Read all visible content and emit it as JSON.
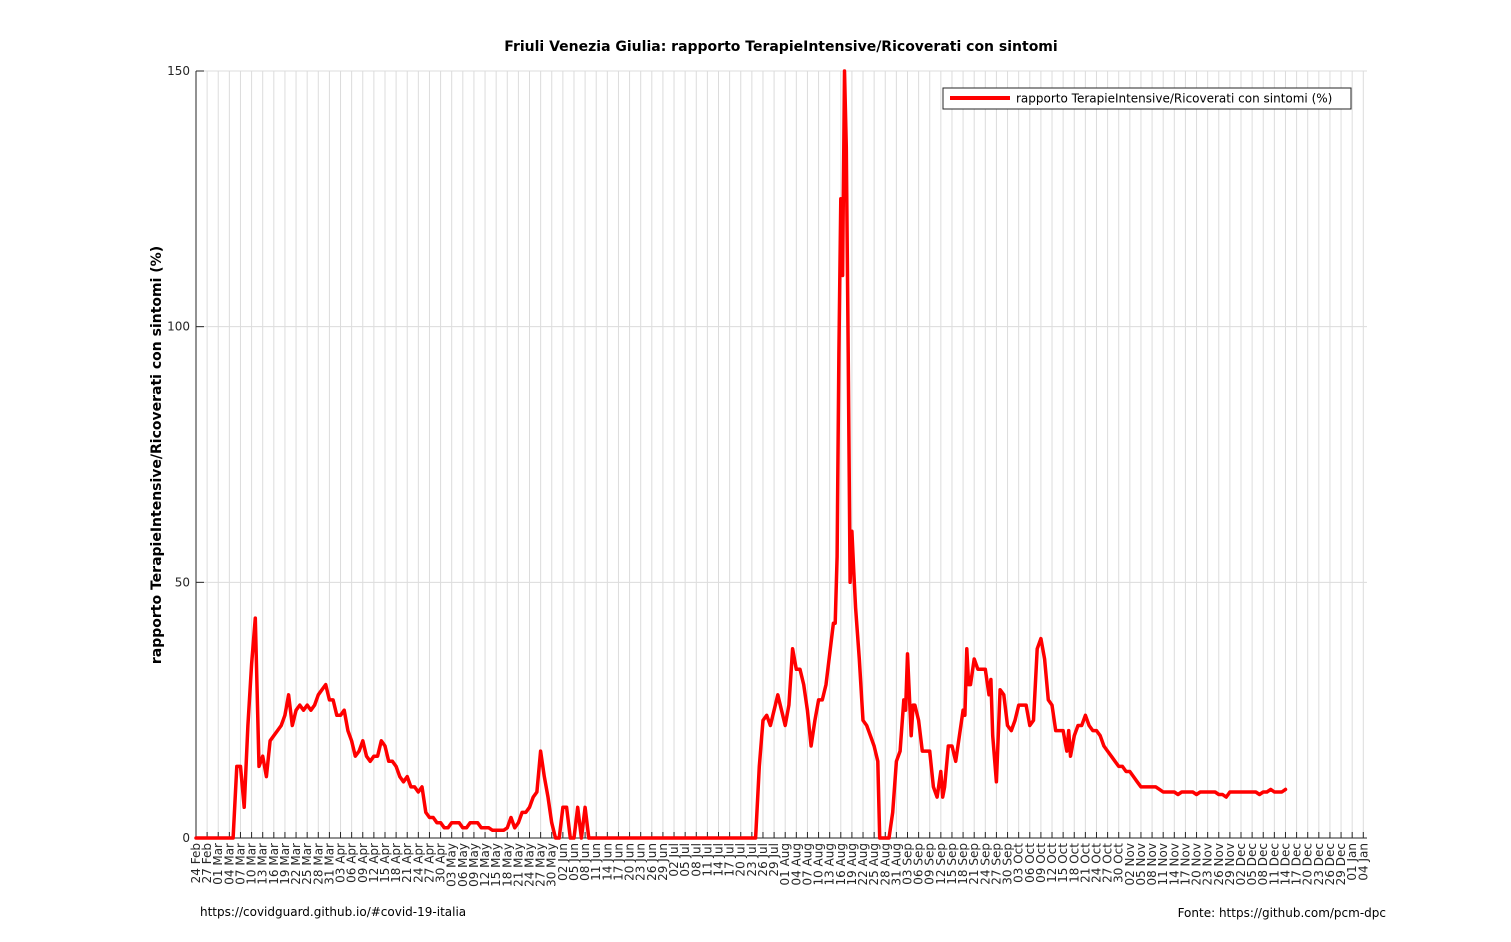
{
  "chart_data": {
    "type": "line",
    "title": "Friuli Venezia Giulia: rapporto TerapieIntensive/Ricoverati con sintomi",
    "ylabel": "rapporto TerapieIntensive/Ricoverati con sintomi (%)",
    "xlabel": "",
    "ylim": [
      0,
      150
    ],
    "yticks": [
      0,
      50,
      100,
      150
    ],
    "grid": true,
    "legend_position": "top-right",
    "x_tick_labels": [
      "24 Feb",
      "27 Feb",
      "01 Mar",
      "04 Mar",
      "07 Mar",
      "10 Mar",
      "13 Mar",
      "16 Mar",
      "19 Mar",
      "22 Mar",
      "25 Mar",
      "28 Mar",
      "31 Mar",
      "03 Apr",
      "06 Apr",
      "09 Apr",
      "12 Apr",
      "15 Apr",
      "18 Apr",
      "21 Apr",
      "24 Apr",
      "27 Apr",
      "30 Apr",
      "03 May",
      "06 May",
      "09 May",
      "12 May",
      "15 May",
      "18 May",
      "21 May",
      "24 May",
      "27 May",
      "30 May",
      "02 Jun",
      "05 Jun",
      "08 Jun",
      "11 Jun",
      "14 Jun",
      "17 Jun",
      "20 Jun",
      "23 Jun",
      "26 Jun",
      "29 Jun",
      "02 Jul",
      "05 Jul",
      "08 Jul",
      "11 Jul",
      "14 Jul",
      "17 Jul",
      "20 Jul",
      "23 Jul",
      "26 Jul",
      "29 Jul",
      "01 Aug",
      "04 Aug",
      "07 Aug",
      "10 Aug",
      "13 Aug",
      "16 Aug",
      "19 Aug",
      "22 Aug",
      "25 Aug",
      "28 Aug",
      "31 Aug",
      "03 Sep",
      "06 Sep",
      "09 Sep",
      "12 Sep",
      "15 Sep",
      "18 Sep",
      "21 Sep",
      "24 Sep",
      "27 Sep",
      "30 Sep",
      "03 Oct",
      "06 Oct",
      "09 Oct",
      "12 Oct",
      "15 Oct",
      "18 Oct",
      "21 Oct",
      "24 Oct",
      "27 Oct",
      "30 Oct",
      "02 Nov",
      "05 Nov",
      "08 Nov",
      "11 Nov",
      "14 Nov",
      "17 Nov",
      "20 Nov",
      "23 Nov",
      "26 Nov",
      "29 Nov",
      "02 Dec",
      "05 Dec",
      "08 Dec",
      "11 Dec",
      "14 Dec",
      "17 Dec",
      "20 Dec",
      "23 Dec",
      "26 Dec",
      "29 Dec",
      "01 Jan",
      "04 Jan"
    ],
    "series": [
      {
        "name": "rapporto TerapieIntensive/Ricoverati con sintomi (%)",
        "color": "#ff0000",
        "points": [
          [
            0,
            0
          ],
          [
            9,
            0
          ],
          [
            10,
            0
          ],
          [
            11,
            14
          ],
          [
            12,
            14
          ],
          [
            13,
            6
          ],
          [
            14,
            22
          ],
          [
            15,
            34
          ],
          [
            16,
            43
          ],
          [
            17,
            14
          ],
          [
            18,
            16
          ],
          [
            19,
            12
          ],
          [
            20,
            19
          ],
          [
            21,
            20
          ],
          [
            22,
            21
          ],
          [
            23,
            22
          ],
          [
            24,
            24
          ],
          [
            25,
            28
          ],
          [
            26,
            22
          ],
          [
            27,
            25
          ],
          [
            28,
            26
          ],
          [
            29,
            25
          ],
          [
            30,
            26
          ],
          [
            31,
            25
          ],
          [
            32,
            26
          ],
          [
            33,
            28
          ],
          [
            34,
            29
          ],
          [
            35,
            30
          ],
          [
            36,
            27
          ],
          [
            37,
            27
          ],
          [
            38,
            24
          ],
          [
            39,
            24
          ],
          [
            40,
            25
          ],
          [
            41,
            21
          ],
          [
            42,
            19
          ],
          [
            43,
            16
          ],
          [
            44,
            17
          ],
          [
            45,
            19
          ],
          [
            46,
            16
          ],
          [
            47,
            15
          ],
          [
            48,
            16
          ],
          [
            49,
            16
          ],
          [
            50,
            19
          ],
          [
            51,
            18
          ],
          [
            52,
            15
          ],
          [
            53,
            15
          ],
          [
            54,
            14
          ],
          [
            55,
            12
          ],
          [
            56,
            11
          ],
          [
            57,
            12
          ],
          [
            58,
            10
          ],
          [
            59,
            10
          ],
          [
            60,
            9
          ],
          [
            61,
            10
          ],
          [
            62,
            5
          ],
          [
            63,
            4
          ],
          [
            64,
            4
          ],
          [
            65,
            3
          ],
          [
            66,
            3
          ],
          [
            67,
            2
          ],
          [
            68,
            2
          ],
          [
            69,
            3
          ],
          [
            70,
            3
          ],
          [
            71,
            3
          ],
          [
            72,
            2
          ],
          [
            73,
            2
          ],
          [
            74,
            3
          ],
          [
            75,
            3
          ],
          [
            76,
            3
          ],
          [
            77,
            2
          ],
          [
            78,
            2
          ],
          [
            79,
            2
          ],
          [
            80,
            1.5
          ],
          [
            81,
            1.5
          ],
          [
            82,
            1.5
          ],
          [
            83,
            1.5
          ],
          [
            84,
            2
          ],
          [
            85,
            4
          ],
          [
            86,
            2
          ],
          [
            87,
            3
          ],
          [
            88,
            5
          ],
          [
            89,
            5
          ],
          [
            90,
            6
          ],
          [
            91,
            8
          ],
          [
            92,
            9
          ],
          [
            93,
            17
          ],
          [
            94,
            12
          ],
          [
            95,
            8
          ],
          [
            96,
            3
          ],
          [
            97,
            0
          ],
          [
            98,
            0
          ],
          [
            99,
            6
          ],
          [
            100,
            6
          ],
          [
            101,
            0
          ],
          [
            102,
            0
          ],
          [
            103,
            6
          ],
          [
            104,
            0
          ],
          [
            105,
            6
          ],
          [
            106,
            0
          ],
          [
            107,
            0
          ],
          [
            150,
            0
          ],
          [
            151,
            0
          ],
          [
            152,
            14
          ],
          [
            153,
            23
          ],
          [
            154,
            24
          ],
          [
            155,
            22
          ],
          [
            156,
            25
          ],
          [
            157,
            28
          ],
          [
            158,
            25
          ],
          [
            159,
            22
          ],
          [
            160,
            26
          ],
          [
            161,
            37
          ],
          [
            162,
            33
          ],
          [
            163,
            33
          ],
          [
            164,
            30
          ],
          [
            165,
            25
          ],
          [
            166,
            18
          ],
          [
            167,
            23
          ],
          [
            168,
            27
          ],
          [
            169,
            27
          ],
          [
            170,
            30
          ],
          [
            171,
            36
          ],
          [
            172,
            42
          ],
          [
            172.5,
            42
          ],
          [
            173,
            55
          ],
          [
            173.5,
            95
          ],
          [
            174,
            125
          ],
          [
            174.5,
            110
          ],
          [
            175,
            150
          ],
          [
            175.5,
            135
          ],
          [
            176,
            95
          ],
          [
            176.5,
            50
          ],
          [
            177,
            60
          ],
          [
            177.5,
            52
          ],
          [
            178,
            45
          ],
          [
            179,
            35
          ],
          [
            180,
            23
          ],
          [
            181,
            22
          ],
          [
            182,
            20
          ],
          [
            183,
            18
          ],
          [
            184,
            15
          ],
          [
            184.5,
            0
          ],
          [
            185,
            0
          ],
          [
            186,
            0
          ],
          [
            187,
            0
          ],
          [
            188,
            5
          ],
          [
            189,
            15
          ],
          [
            190,
            17
          ],
          [
            191,
            27
          ],
          [
            191.5,
            25
          ],
          [
            192,
            36
          ],
          [
            193,
            20
          ],
          [
            193.5,
            26
          ],
          [
            194,
            26
          ],
          [
            195,
            23
          ],
          [
            196,
            17
          ],
          [
            197,
            17
          ],
          [
            198,
            17
          ],
          [
            199,
            10
          ],
          [
            200,
            8
          ],
          [
            201,
            13
          ],
          [
            201.5,
            8
          ],
          [
            202,
            10
          ],
          [
            203,
            18
          ],
          [
            204,
            18
          ],
          [
            205,
            15
          ],
          [
            206,
            20
          ],
          [
            207,
            25
          ],
          [
            207.5,
            24
          ],
          [
            208,
            37
          ],
          [
            208.5,
            30
          ],
          [
            209,
            30
          ],
          [
            210,
            35
          ],
          [
            211,
            33
          ],
          [
            212,
            33
          ],
          [
            213,
            33
          ],
          [
            214,
            28
          ],
          [
            214.5,
            31
          ],
          [
            215,
            20
          ],
          [
            216,
            11
          ],
          [
            217,
            29
          ],
          [
            218,
            28
          ],
          [
            219,
            22
          ],
          [
            220,
            21
          ],
          [
            221,
            23
          ],
          [
            222,
            26
          ],
          [
            223,
            26
          ],
          [
            224,
            26
          ],
          [
            225,
            22
          ],
          [
            226,
            23
          ],
          [
            227,
            37
          ],
          [
            228,
            39
          ],
          [
            229,
            35
          ],
          [
            230,
            27
          ],
          [
            231,
            26
          ],
          [
            232,
            21
          ],
          [
            233,
            21
          ],
          [
            234,
            21
          ],
          [
            235,
            17
          ],
          [
            235.5,
            21
          ],
          [
            236,
            16
          ],
          [
            237,
            20
          ],
          [
            238,
            22
          ],
          [
            239,
            22
          ],
          [
            240,
            24
          ],
          [
            241,
            22
          ],
          [
            242,
            21
          ],
          [
            243,
            21
          ],
          [
            244,
            20
          ],
          [
            245,
            18
          ],
          [
            246,
            17
          ],
          [
            247,
            16
          ],
          [
            248,
            15
          ],
          [
            249,
            14
          ],
          [
            250,
            14
          ],
          [
            251,
            13
          ],
          [
            252,
            13
          ],
          [
            253,
            12
          ],
          [
            254,
            11
          ],
          [
            255,
            10
          ],
          [
            256,
            10
          ],
          [
            257,
            10
          ],
          [
            258,
            10
          ],
          [
            259,
            10
          ],
          [
            260,
            9.5
          ],
          [
            261,
            9
          ],
          [
            262,
            9
          ],
          [
            263,
            9
          ],
          [
            264,
            9
          ],
          [
            265,
            8.5
          ],
          [
            266,
            9
          ],
          [
            267,
            9
          ],
          [
            268,
            9
          ],
          [
            269,
            9
          ],
          [
            270,
            8.5
          ],
          [
            271,
            9
          ],
          [
            272,
            9
          ],
          [
            273,
            9
          ],
          [
            274,
            9
          ],
          [
            275,
            9
          ],
          [
            276,
            8.5
          ],
          [
            277,
            8.5
          ],
          [
            278,
            8
          ],
          [
            279,
            9
          ],
          [
            280,
            9
          ],
          [
            281,
            9
          ],
          [
            282,
            9
          ],
          [
            283,
            9
          ],
          [
            284,
            9
          ],
          [
            285,
            9
          ],
          [
            286,
            9
          ],
          [
            287,
            8.5
          ],
          [
            288,
            9
          ],
          [
            289,
            9
          ],
          [
            290,
            9.5
          ],
          [
            291,
            9
          ],
          [
            292,
            9
          ],
          [
            293,
            9
          ],
          [
            294,
            9.5
          ]
        ]
      }
    ]
  },
  "footer": {
    "left": "https://covidguard.github.io/#covid-19-italia",
    "right": "Fonte: https://github.com/pcm-dpc"
  }
}
